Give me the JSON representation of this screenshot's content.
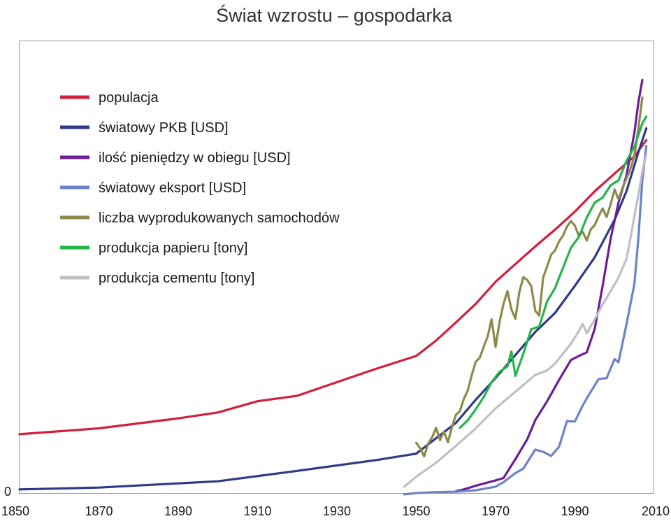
{
  "chart_data": {
    "type": "line",
    "title": "Świat wzrostu – gospodarka",
    "xlabel": "",
    "ylabel": "",
    "xlim": [
      1850,
      2010
    ],
    "ylim": [
      0,
      100
    ],
    "x_ticks": [
      "1850",
      "1870",
      "1890",
      "1910",
      "1930",
      "1950",
      "1970",
      "1990",
      "2010"
    ],
    "y_ticks": [
      "0"
    ],
    "grid": false,
    "legend_position": "top-left",
    "series": [
      {
        "name": "populacja",
        "color": "#d21f3c",
        "points": [
          [
            1850,
            13
          ],
          [
            1870,
            14.3
          ],
          [
            1880,
            15.4
          ],
          [
            1890,
            16.5
          ],
          [
            1900,
            17.8
          ],
          [
            1910,
            20.3
          ],
          [
            1920,
            21.5
          ],
          [
            1930,
            24.5
          ],
          [
            1940,
            27.5
          ],
          [
            1950,
            30.3
          ],
          [
            1955,
            33.7
          ],
          [
            1960,
            37.7
          ],
          [
            1965,
            41.8
          ],
          [
            1970,
            46.7
          ],
          [
            1975,
            50.6
          ],
          [
            1980,
            54.5
          ],
          [
            1985,
            58.2
          ],
          [
            1990,
            62.2
          ],
          [
            1995,
            66.7
          ],
          [
            2000,
            70.6
          ],
          [
            2005,
            74.4
          ],
          [
            2008,
            78
          ]
        ]
      },
      {
        "name": "światowy PKB [USD]",
        "color": "#2e3a87",
        "points": [
          [
            1850,
            0.8
          ],
          [
            1870,
            1.2
          ],
          [
            1900,
            2.6
          ],
          [
            1920,
            4.9
          ],
          [
            1940,
            7.3
          ],
          [
            1950,
            8.7
          ],
          [
            1955,
            12.1
          ],
          [
            1960,
            15.5
          ],
          [
            1965,
            20.6
          ],
          [
            1970,
            25.4
          ],
          [
            1975,
            30.5
          ],
          [
            1980,
            35.6
          ],
          [
            1985,
            39.8
          ],
          [
            1990,
            45.8
          ],
          [
            1995,
            52.1
          ],
          [
            2000,
            60.4
          ],
          [
            2003,
            66.7
          ],
          [
            2006,
            75.3
          ],
          [
            2008,
            80.6
          ]
        ]
      },
      {
        "name": "ilość pieniędzy w obiegu [USD]",
        "color": "#6c1c98",
        "points": [
          [
            1960,
            0.4
          ],
          [
            1962,
            0.8
          ],
          [
            1965,
            1.6
          ],
          [
            1970,
            2.8
          ],
          [
            1972,
            3.3
          ],
          [
            1975,
            7.5
          ],
          [
            1978,
            11.9
          ],
          [
            1980,
            16.1
          ],
          [
            1983,
            20.3
          ],
          [
            1986,
            25
          ],
          [
            1989,
            29.4
          ],
          [
            1991,
            30.3
          ],
          [
            1993,
            31.1
          ],
          [
            1995,
            36.3
          ],
          [
            1997,
            45.8
          ],
          [
            1999,
            56.2
          ],
          [
            2001,
            64.2
          ],
          [
            2003,
            70.2
          ],
          [
            2005,
            79.6
          ],
          [
            2006,
            86.3
          ],
          [
            2007,
            91.3
          ]
        ]
      },
      {
        "name": "światowy eksport [USD]",
        "color": "#6d82c9",
        "points": [
          [
            1947,
            -0.3
          ],
          [
            1950,
            0
          ],
          [
            1955,
            0.2
          ],
          [
            1960,
            0.3
          ],
          [
            1965,
            0.6
          ],
          [
            1970,
            1.4
          ],
          [
            1972,
            2.4
          ],
          [
            1975,
            4.4
          ],
          [
            1977,
            5.4
          ],
          [
            1979,
            8.2
          ],
          [
            1980,
            9.6
          ],
          [
            1982,
            9.1
          ],
          [
            1984,
            8.2
          ],
          [
            1986,
            10.2
          ],
          [
            1988,
            15.9
          ],
          [
            1990,
            15.8
          ],
          [
            1992,
            19.4
          ],
          [
            1994,
            22.4
          ],
          [
            1996,
            25.2
          ],
          [
            1998,
            25.4
          ],
          [
            2000,
            29.6
          ],
          [
            2001,
            28.9
          ],
          [
            2003,
            37.3
          ],
          [
            2005,
            46.2
          ],
          [
            2006,
            56.3
          ],
          [
            2007,
            69.1
          ],
          [
            2008,
            76.7
          ]
        ]
      },
      {
        "name": "liczba wyprodukowanych samochodów",
        "color": "#8c8a4b",
        "points": [
          [
            1950,
            11.1
          ],
          [
            1951,
            9.9
          ],
          [
            1952,
            8.1
          ],
          [
            1953,
            10.9
          ],
          [
            1954,
            12.3
          ],
          [
            1955,
            14.4
          ],
          [
            1956,
            11.7
          ],
          [
            1957,
            13.6
          ],
          [
            1958,
            11.2
          ],
          [
            1959,
            14.6
          ],
          [
            1960,
            17.3
          ],
          [
            1961,
            18.1
          ],
          [
            1962,
            20.8
          ],
          [
            1963,
            22.7
          ],
          [
            1964,
            26.1
          ],
          [
            1965,
            29
          ],
          [
            1966,
            29.9
          ],
          [
            1967,
            32.3
          ],
          [
            1968,
            34.6
          ],
          [
            1969,
            38.4
          ],
          [
            1970,
            32.3
          ],
          [
            1971,
            37.8
          ],
          [
            1972,
            41.8
          ],
          [
            1973,
            44.6
          ],
          [
            1974,
            40.6
          ],
          [
            1975,
            38.5
          ],
          [
            1976,
            44.4
          ],
          [
            1977,
            47.7
          ],
          [
            1978,
            47.1
          ],
          [
            1979,
            45.7
          ],
          [
            1980,
            40.3
          ],
          [
            1981,
            39.2
          ],
          [
            1982,
            47.6
          ],
          [
            1983,
            50.1
          ],
          [
            1984,
            52.7
          ],
          [
            1985,
            53.6
          ],
          [
            1986,
            55.6
          ],
          [
            1987,
            56.9
          ],
          [
            1988,
            58.9
          ],
          [
            1989,
            60.1
          ],
          [
            1990,
            59.1
          ],
          [
            1991,
            56.8
          ],
          [
            1992,
            57.7
          ],
          [
            1993,
            55.8
          ],
          [
            1994,
            58.3
          ],
          [
            1995,
            59.2
          ],
          [
            1996,
            61.2
          ],
          [
            1997,
            62.9
          ],
          [
            1998,
            61
          ],
          [
            1999,
            63.8
          ],
          [
            2000,
            67.1
          ],
          [
            2001,
            64.9
          ],
          [
            2002,
            67.4
          ],
          [
            2003,
            69.5
          ],
          [
            2004,
            71.6
          ],
          [
            2005,
            74.5
          ],
          [
            2006,
            80.6
          ],
          [
            2007,
            87.4
          ]
        ]
      },
      {
        "name": "produkcja papieru [tony]",
        "color": "#23b54a",
        "points": [
          [
            1961,
            14.4
          ],
          [
            1963,
            16.1
          ],
          [
            1965,
            18.5
          ],
          [
            1967,
            21.2
          ],
          [
            1969,
            24.5
          ],
          [
            1971,
            26.8
          ],
          [
            1973,
            28
          ],
          [
            1974,
            31.3
          ],
          [
            1975,
            25.9
          ],
          [
            1977,
            30.8
          ],
          [
            1979,
            36.2
          ],
          [
            1981,
            36.8
          ],
          [
            1983,
            42.4
          ],
          [
            1985,
            45.3
          ],
          [
            1987,
            49.8
          ],
          [
            1989,
            54.2
          ],
          [
            1991,
            56.6
          ],
          [
            1993,
            60.9
          ],
          [
            1995,
            64.2
          ],
          [
            1997,
            65.3
          ],
          [
            1999,
            68
          ],
          [
            2001,
            69.1
          ],
          [
            2003,
            73.4
          ],
          [
            2005,
            76.5
          ],
          [
            2007,
            81.7
          ],
          [
            2008,
            83.2
          ]
        ]
      },
      {
        "name": "produkcja cementu [tony]",
        "color": "#bfc0c6",
        "points": [
          [
            1947,
            1.4
          ],
          [
            1950,
            3.6
          ],
          [
            1955,
            6.7
          ],
          [
            1960,
            10.4
          ],
          [
            1965,
            14.3
          ],
          [
            1970,
            18.7
          ],
          [
            1975,
            22.4
          ],
          [
            1980,
            26.1
          ],
          [
            1983,
            27.1
          ],
          [
            1985,
            28.6
          ],
          [
            1987,
            30.8
          ],
          [
            1989,
            33
          ],
          [
            1991,
            35.8
          ],
          [
            1992,
            37.4
          ],
          [
            1993,
            35.3
          ],
          [
            1995,
            38.4
          ],
          [
            1997,
            41.7
          ],
          [
            1999,
            44.6
          ],
          [
            2001,
            47.6
          ],
          [
            2003,
            51.8
          ],
          [
            2004,
            56.3
          ],
          [
            2005,
            61.2
          ],
          [
            2006,
            65.9
          ],
          [
            2007,
            71.2
          ],
          [
            2008,
            74.7
          ]
        ]
      }
    ]
  }
}
